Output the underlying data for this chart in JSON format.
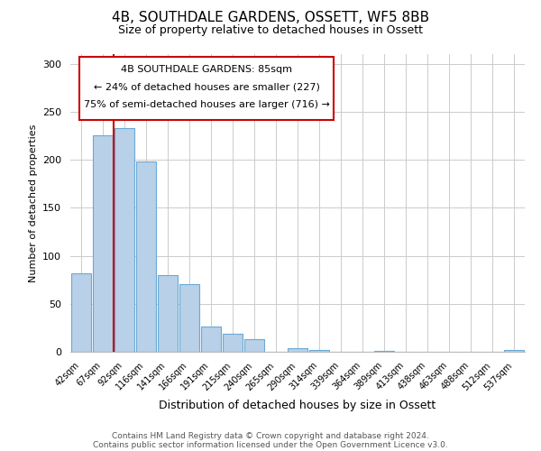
{
  "title": "4B, SOUTHDALE GARDENS, OSSETT, WF5 8BB",
  "subtitle": "Size of property relative to detached houses in Ossett",
  "xlabel": "Distribution of detached houses by size in Ossett",
  "ylabel": "Number of detached properties",
  "bar_labels": [
    "42sqm",
    "67sqm",
    "92sqm",
    "116sqm",
    "141sqm",
    "166sqm",
    "191sqm",
    "215sqm",
    "240sqm",
    "265sqm",
    "290sqm",
    "314sqm",
    "339sqm",
    "364sqm",
    "389sqm",
    "413sqm",
    "438sqm",
    "463sqm",
    "488sqm",
    "512sqm",
    "537sqm"
  ],
  "bar_values": [
    82,
    225,
    233,
    198,
    80,
    70,
    26,
    19,
    13,
    0,
    4,
    2,
    0,
    0,
    1,
    0,
    0,
    0,
    0,
    0,
    2
  ],
  "bar_color": "#b8d0e8",
  "bar_edge_color": "#6aaad4",
  "property_label": "4B SOUTHDALE GARDENS: 85sqm",
  "annotation_line1": "← 24% of detached houses are smaller (227)",
  "annotation_line2": "75% of semi-detached houses are larger (716) →",
  "vline_color": "#cc0000",
  "vline_x": 1.5,
  "ylim": [
    0,
    310
  ],
  "yticks": [
    0,
    50,
    100,
    150,
    200,
    250,
    300
  ],
  "footer_line1": "Contains HM Land Registry data © Crown copyright and database right 2024.",
  "footer_line2": "Contains public sector information licensed under the Open Government Licence v3.0.",
  "background_color": "#ffffff",
  "grid_color": "#cccccc"
}
